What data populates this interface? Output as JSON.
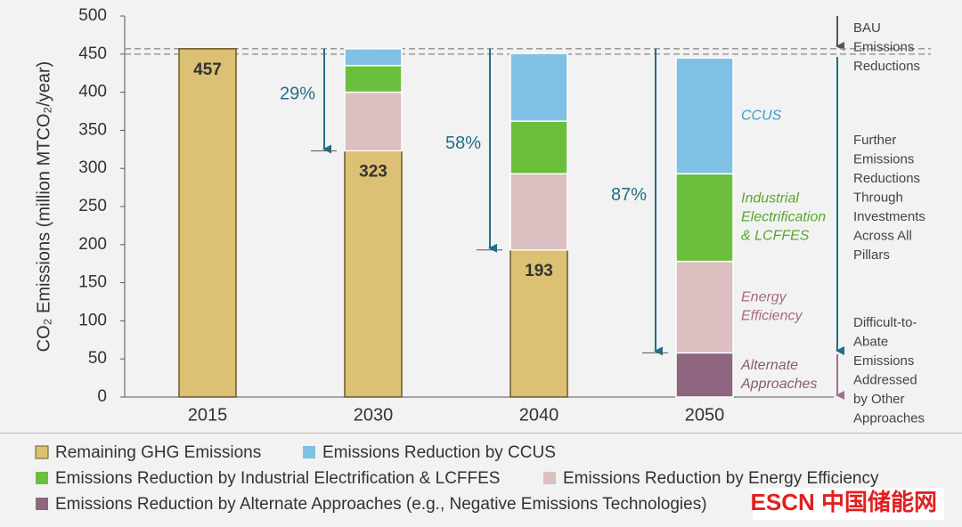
{
  "chart_data": {
    "type": "stacked_bar",
    "y_label": "CO₂ Emissions (million MTCO₂/year)",
    "categories": [
      "2015",
      "2030",
      "2040",
      "2050"
    ],
    "series": [
      {
        "name": "Remaining GHG Emissions",
        "color": "#dcc073",
        "values": [
          457,
          323,
          193,
          0
        ]
      },
      {
        "name": "Emissions Reduction by CCUS",
        "color": "#80c0e4",
        "values": [
          0,
          22,
          89,
          152
        ],
        "inline_label": [
          "CCUS"
        ],
        "label_color": "#3b9ccc"
      },
      {
        "name": "Emissions Reduction by Industrial Electrification & LCFFES",
        "color": "#6cbf3c",
        "values": [
          0,
          35,
          69,
          115
        ],
        "inline_label": [
          "Industrial",
          "Electrification",
          "& LCFFES"
        ],
        "label_color": "#5aa62e"
      },
      {
        "name": "Emissions Reduction by Energy Efficiency",
        "color": "#dcbfc0",
        "values": [
          0,
          77,
          100,
          120
        ],
        "inline_label": [
          "Energy",
          "Efficiency"
        ],
        "label_color": "#a86a80"
      },
      {
        "name": "Emissions Reduction by Alternate Approaches (e.g., Negative Emissions Technologies)",
        "color": "#8e6680",
        "values": [
          0,
          0,
          0,
          58
        ],
        "inline_label": [
          "Alternate",
          "Approaches"
        ],
        "label_color": "#8a5a7a"
      }
    ],
    "reduction_labels": [
      null,
      "29%",
      "58%",
      "87%"
    ],
    "reference_lines": [
      457,
      450
    ],
    "side_notes": [
      [
        "BAU",
        "Emissions",
        "Reductions"
      ],
      [
        "Further",
        "Emissions",
        "Reductions",
        "Through",
        "Investments",
        "Across All",
        "Pillars"
      ],
      [
        "Difficult-to-",
        "Abate",
        "Emissions",
        "Addressed",
        "by Other",
        "Approaches"
      ]
    ],
    "ylim": [
      0,
      500
    ],
    "yticks": [
      0,
      50,
      100,
      150,
      200,
      250,
      300,
      350,
      400,
      450,
      500
    ],
    "watermark": "ESCN 中国储能网"
  }
}
